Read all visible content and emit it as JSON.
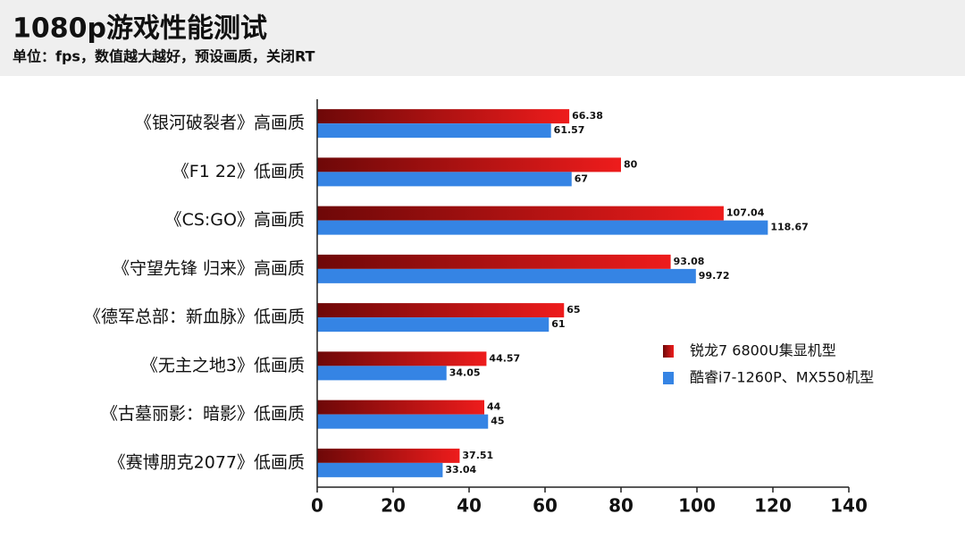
{
  "chart_data": {
    "type": "bar",
    "orientation": "horizontal",
    "title": "1080p游戏性能测试",
    "subtitle": "单位：fps，数值越大越好，预设画质，关闭RT",
    "categories": [
      "《银河破裂者》高画质",
      "《F1 22》低画质",
      "《CS:GO》高画质",
      "《守望先锋 归来》高画质",
      "《德军总部：新血脉》低画质",
      "《无主之地3》低画质",
      "《古墓丽影：暗影》低画质",
      "《赛博朋克2077》低画质"
    ],
    "series": [
      {
        "name": "锐龙7 6800U集显机型",
        "color": "#ee1c1c",
        "values": [
          66.38,
          80,
          107.04,
          93.08,
          65,
          44.57,
          44,
          37.51
        ]
      },
      {
        "name": "酷睿i7-1260P、MX550机型",
        "color": "#3584e4",
        "values": [
          61.57,
          67,
          118.67,
          99.72,
          61,
          34.05,
          45,
          33.04
        ]
      }
    ],
    "xlim": [
      0,
      140
    ],
    "xticks": [
      0,
      20,
      40,
      60,
      80,
      100,
      120,
      140
    ],
    "legend": "right",
    "grid": false
  }
}
